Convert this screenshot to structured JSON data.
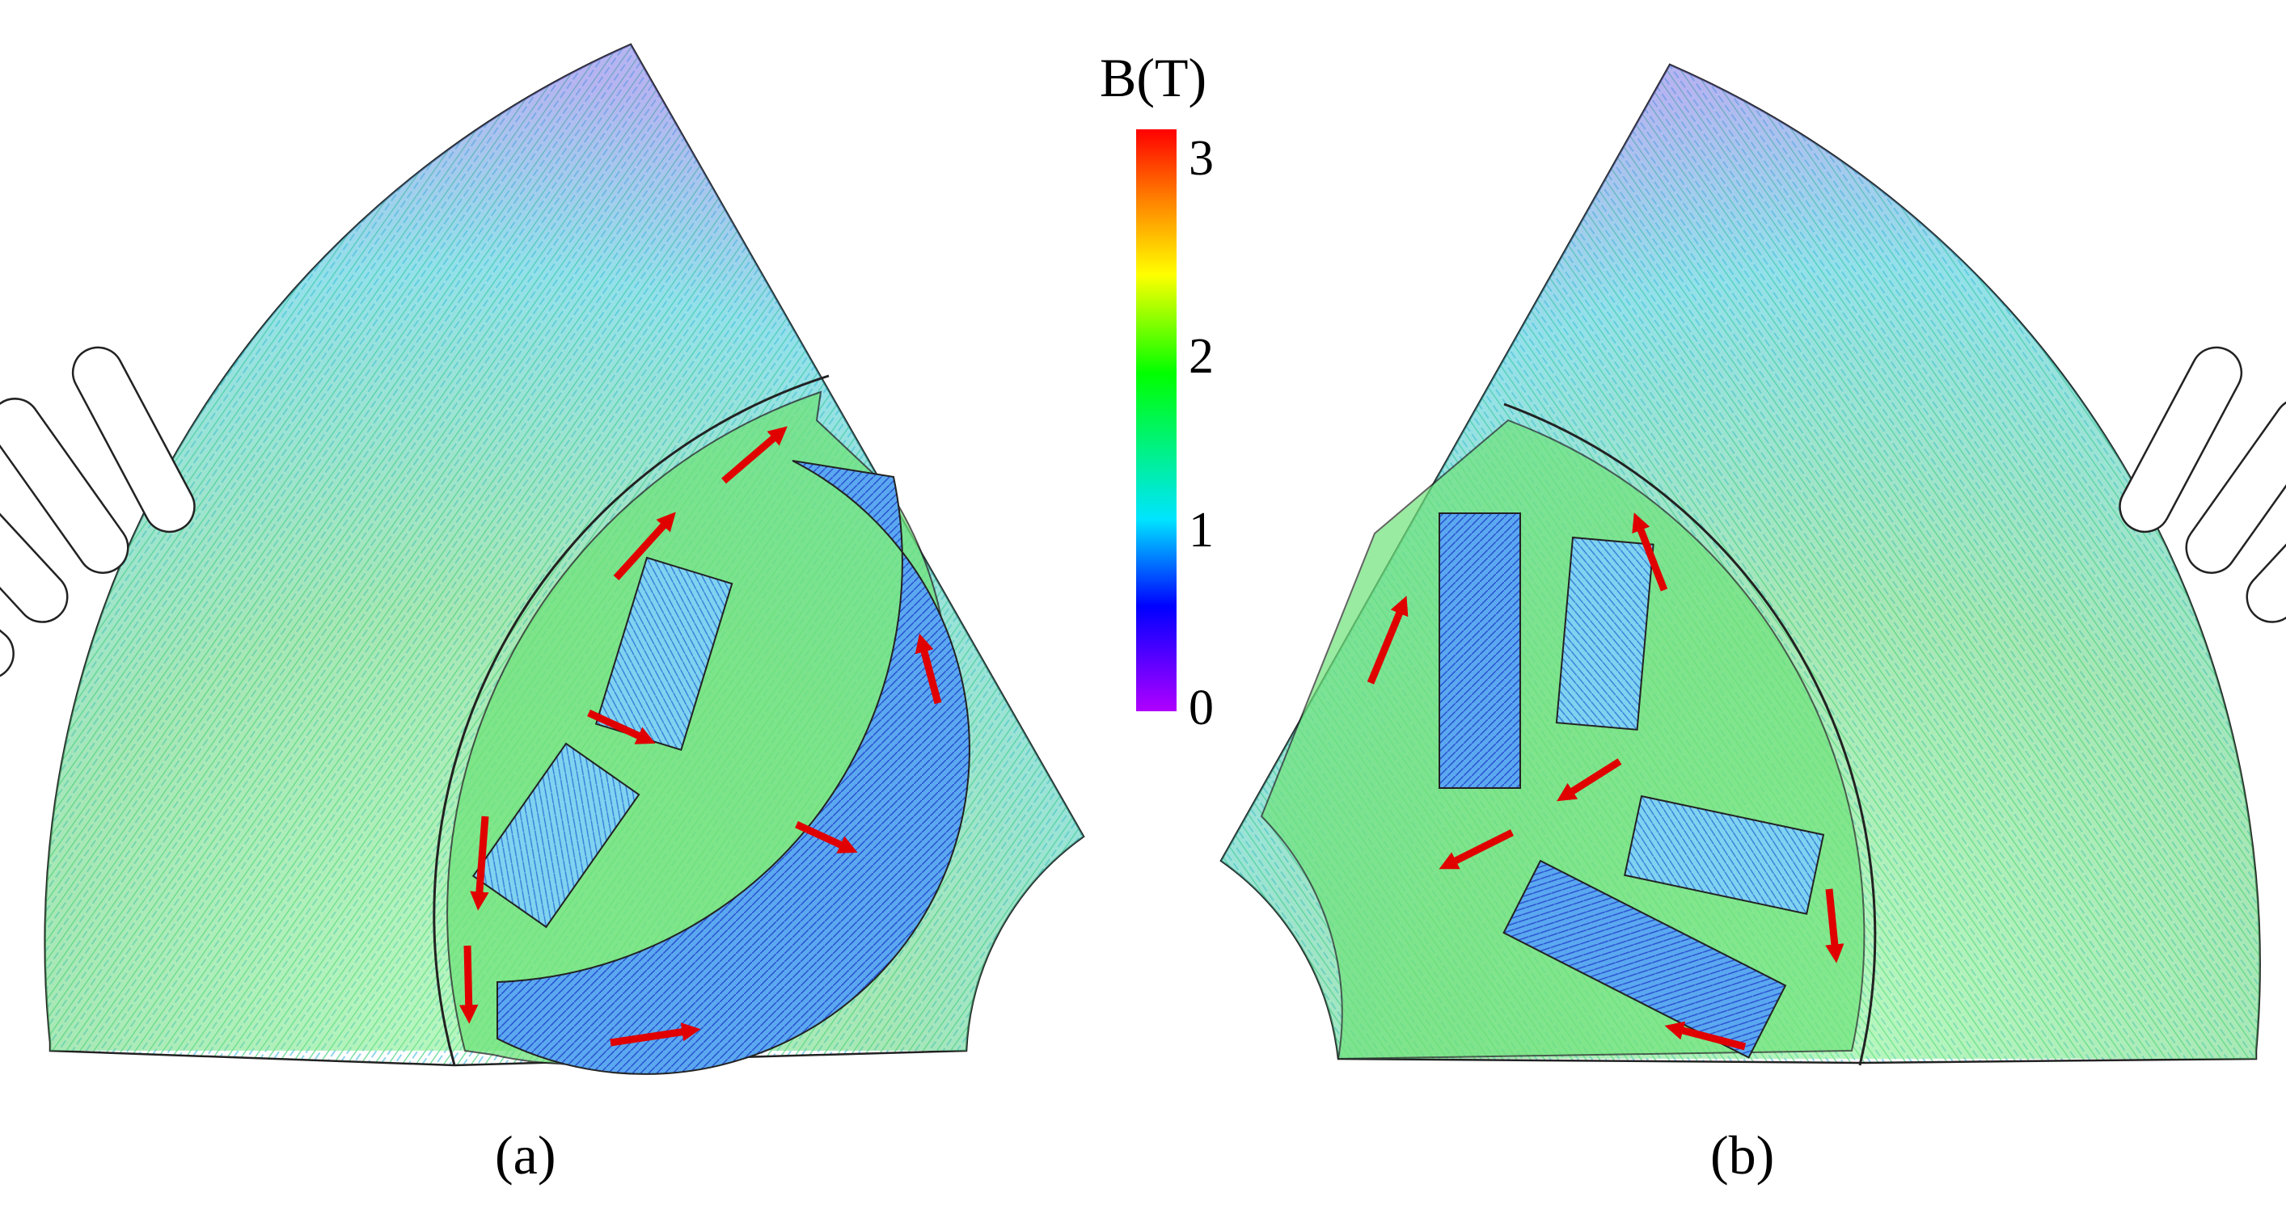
{
  "colorbar": {
    "title": "B(T)",
    "ticks": [
      "3",
      "2",
      "1",
      "0"
    ],
    "min": 0,
    "max": 3.2,
    "colors": [
      "#b000ff",
      "#0000ff",
      "#00e5ff",
      "#00ff00",
      "#ffff00",
      "#ff8000",
      "#ff0000"
    ]
  },
  "panels": [
    {
      "label": "(a)"
    },
    {
      "label": "(b)"
    }
  ],
  "colors": {
    "arrow": "#e00000",
    "slot": "#ffffff",
    "outline": "#222222"
  }
}
